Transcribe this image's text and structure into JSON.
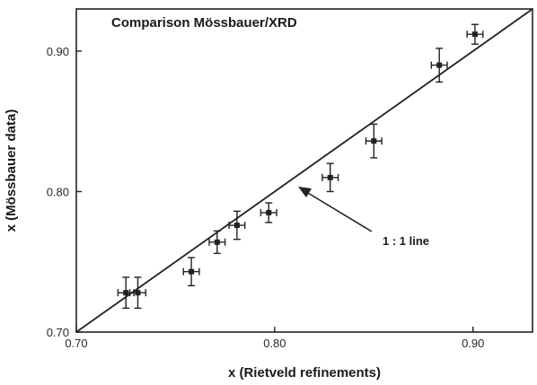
{
  "chart_data": {
    "type": "scatter",
    "title": "Comparison Mössbauer/XRD",
    "xlabel": "x (Rietveld refinements)",
    "ylabel": "x (Mössbauer data)",
    "xlim": [
      0.7,
      0.93
    ],
    "ylim": [
      0.7,
      0.93
    ],
    "x_ticks": [
      {
        "value": 0.7,
        "label": "0.70"
      },
      {
        "value": 0.8,
        "label": "0.80"
      },
      {
        "value": 0.9,
        "label": "0.90"
      }
    ],
    "y_ticks": [
      {
        "value": 0.7,
        "label": "0.70"
      },
      {
        "value": 0.8,
        "label": "0.80"
      },
      {
        "value": 0.9,
        "label": "0.90"
      }
    ],
    "points": [
      {
        "x": 0.725,
        "y": 0.728,
        "xerr": 0.004,
        "yerr": 0.011
      },
      {
        "x": 0.731,
        "y": 0.728,
        "xerr": 0.004,
        "yerr": 0.011
      },
      {
        "x": 0.758,
        "y": 0.743,
        "xerr": 0.004,
        "yerr": 0.01
      },
      {
        "x": 0.771,
        "y": 0.764,
        "xerr": 0.004,
        "yerr": 0.008
      },
      {
        "x": 0.781,
        "y": 0.776,
        "xerr": 0.004,
        "yerr": 0.01
      },
      {
        "x": 0.797,
        "y": 0.785,
        "xerr": 0.004,
        "yerr": 0.007
      },
      {
        "x": 0.828,
        "y": 0.81,
        "xerr": 0.004,
        "yerr": 0.01
      },
      {
        "x": 0.85,
        "y": 0.836,
        "xerr": 0.004,
        "yerr": 0.012
      },
      {
        "x": 0.883,
        "y": 0.89,
        "xerr": 0.004,
        "yerr": 0.012
      },
      {
        "x": 0.901,
        "y": 0.912,
        "xerr": 0.004,
        "yerr": 0.007
      }
    ],
    "reference_line": {
      "label": "1 : 1 line",
      "slope": 1,
      "intercept": 0
    },
    "grid": false,
    "colors": {
      "marker": "#222222",
      "line": "#222222",
      "axis": "#222222"
    }
  }
}
